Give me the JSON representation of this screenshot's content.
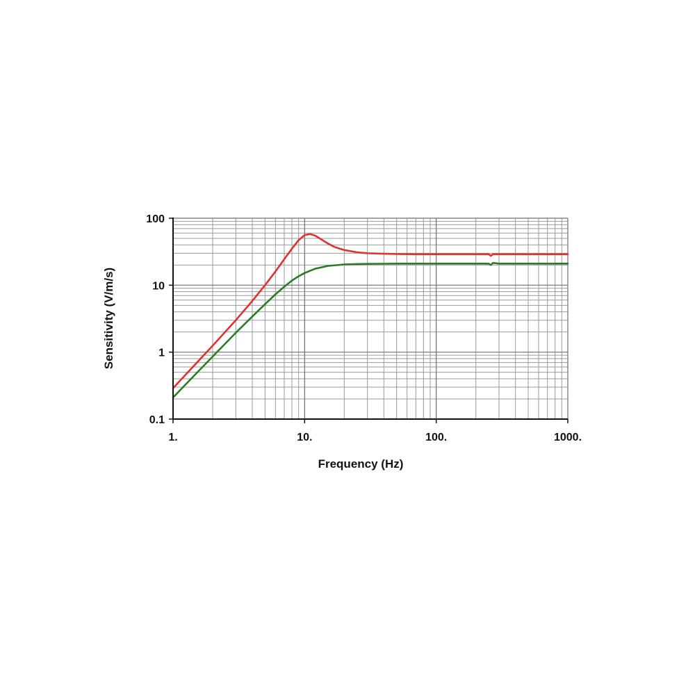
{
  "chart_data": {
    "type": "line",
    "title": "",
    "xlabel": "Frequency (Hz)",
    "ylabel": "Sensitivity (V/m/s)",
    "x_scale": "log",
    "y_scale": "log",
    "xlim": [
      1,
      1000
    ],
    "ylim": [
      0.1,
      100
    ],
    "x_ticks": [
      1,
      10,
      100,
      1000
    ],
    "x_tick_labels": [
      "1.",
      "10.",
      "100.",
      "1000."
    ],
    "y_ticks": [
      0.1,
      1,
      10,
      100
    ],
    "y_tick_labels": [
      "0.1",
      "1",
      "10",
      "100"
    ],
    "grid": true,
    "legend": "none",
    "series": [
      {
        "color": "#e03030",
        "x": [
          1,
          1.5,
          2,
          3,
          4,
          5,
          6,
          7,
          8,
          9,
          10,
          11,
          12,
          13,
          15,
          17,
          20,
          25,
          30,
          40,
          50,
          70,
          100,
          150,
          200,
          250,
          260,
          270,
          300,
          500,
          700,
          1000
        ],
        "y": [
          0.29,
          0.68,
          1.25,
          3.0,
          5.8,
          10.0,
          16.0,
          24.5,
          35.0,
          47.0,
          56.0,
          58.0,
          55.0,
          50.0,
          42.0,
          37.0,
          33.5,
          31.0,
          30.0,
          29.5,
          29.2,
          29.0,
          29.0,
          29.0,
          29.0,
          29.0,
          27.5,
          29.0,
          29.0,
          29.0,
          29.0,
          29.0
        ]
      },
      {
        "color": "#2a7a2a",
        "x": [
          1,
          1.5,
          2,
          3,
          4,
          5,
          6,
          7,
          8,
          9,
          10,
          12,
          15,
          20,
          25,
          30,
          40,
          50,
          70,
          100,
          150,
          200,
          250,
          260,
          270,
          300,
          500,
          700,
          1000
        ],
        "y": [
          0.21,
          0.48,
          0.86,
          1.95,
          3.4,
          5.2,
          7.3,
          9.5,
          11.7,
          13.6,
          15.2,
          17.6,
          19.4,
          20.4,
          20.7,
          20.8,
          20.9,
          21.0,
          21.0,
          21.0,
          21.0,
          21.0,
          21.0,
          20.0,
          21.5,
          21.0,
          21.0,
          21.0,
          21.0
        ]
      }
    ]
  }
}
